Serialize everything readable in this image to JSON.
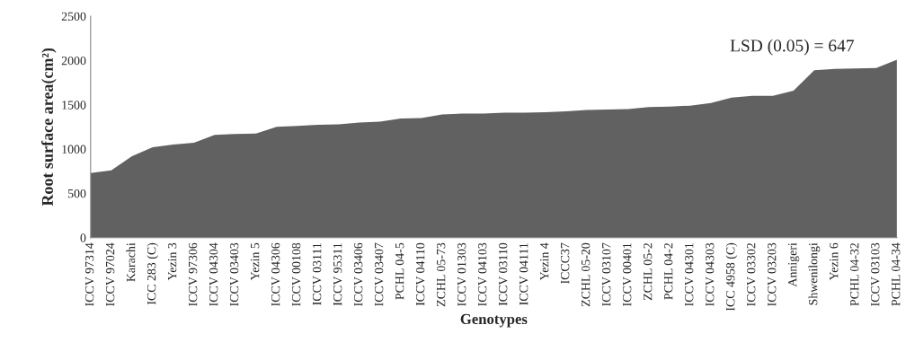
{
  "chart_data": {
    "type": "area",
    "xlabel": "Genotypes",
    "ylabel": "Root surface area(cm²)",
    "categories": [
      "ICCV 97314",
      "ICCV 97024",
      "Karachi",
      "ICC 283 (C)",
      "Yezin 3",
      "ICCV 97306",
      "ICCV 04304",
      "ICCV 03403",
      "Yezin 5",
      "ICCV 04306",
      "ICCV 00108",
      "ICCV 03111",
      "ICCV 95311",
      "ICCV 03406",
      "ICCV 03407",
      "PCHL 04-5",
      "ICCV 04110",
      "ZCHL 05-73",
      "ICCV 01303",
      "ICCV 04103",
      "ICCV 03110",
      "ICCV 04111",
      "Yezin 4",
      "ICCC37",
      "ZCHL 05-20",
      "ICCV 03107",
      "ICCV 00401",
      "ZCHL 05-2",
      "PCHL 04-2",
      "ICCV 04301",
      "ICCV 04303",
      "ICC 4958 (C)",
      "ICCV 03302",
      "ICCV 03203",
      "Annigeri",
      "Shwenilongi",
      "Yezin 6",
      "PCHL 04-32",
      "ICCV 03103",
      "PCHL 04-34"
    ],
    "values": [
      730,
      760,
      920,
      1020,
      1050,
      1070,
      1160,
      1170,
      1175,
      1250,
      1260,
      1275,
      1280,
      1300,
      1310,
      1345,
      1350,
      1390,
      1400,
      1400,
      1410,
      1410,
      1415,
      1425,
      1440,
      1445,
      1450,
      1475,
      1480,
      1490,
      1520,
      1580,
      1600,
      1600,
      1660,
      1890,
      1905,
      1910,
      1915,
      2010
    ],
    "color": "#616161",
    "ylim": [
      0,
      2500
    ],
    "yticks": [
      0,
      500,
      1000,
      1500,
      2000,
      2500
    ],
    "annotations": [
      "LSD (0.05) = 647"
    ],
    "grid": false,
    "legend": false
  }
}
